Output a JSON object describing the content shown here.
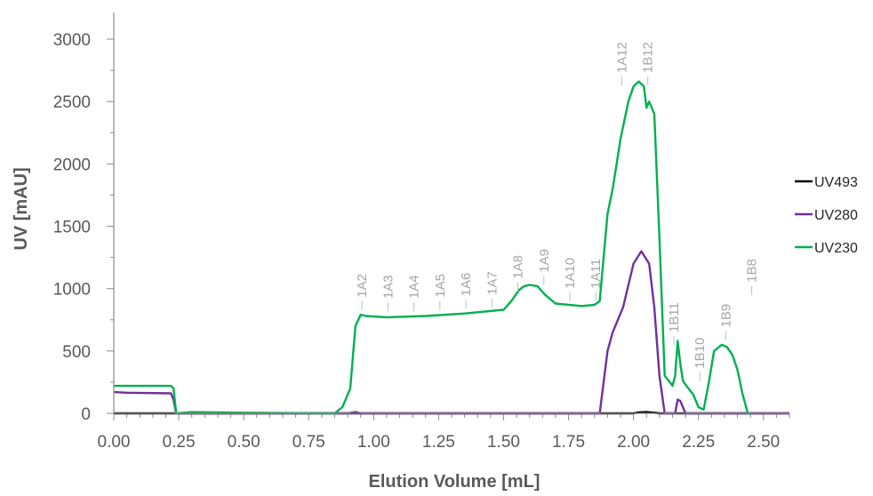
{
  "chart_data": {
    "type": "line",
    "xlabel": "Elution Volume [mL]",
    "ylabel": "UV [mAU]",
    "xlim": [
      0,
      2.6
    ],
    "ylim": [
      0,
      3000
    ],
    "x_ticks": [
      "0.00",
      "0.25",
      "0.50",
      "0.75",
      "1.00",
      "1.25",
      "1.50",
      "1.75",
      "2.00",
      "2.25",
      "2.50"
    ],
    "y_ticks": [
      "0",
      "500",
      "1000",
      "1500",
      "2000",
      "2500",
      "3000"
    ],
    "grid": false,
    "legend_position": "right",
    "series": [
      {
        "name": "UV493",
        "color": "#000000",
        "x": [
          0,
          2.0,
          2.02,
          2.05,
          2.08,
          2.1,
          2.6
        ],
        "y": [
          0,
          0,
          8,
          10,
          5,
          0,
          0
        ]
      },
      {
        "name": "UV280",
        "color": "#7030a0",
        "x": [
          0,
          0.05,
          0.22,
          0.23,
          0.24,
          0.9,
          0.93,
          0.95,
          1.87,
          1.9,
          1.92,
          1.96,
          2.0,
          2.03,
          2.06,
          2.08,
          2.1,
          2.12,
          2.16,
          2.17,
          2.18,
          2.2,
          2.6
        ],
        "y": [
          170,
          165,
          160,
          110,
          0,
          0,
          10,
          0,
          0,
          500,
          650,
          850,
          1200,
          1300,
          1200,
          850,
          300,
          0,
          0,
          110,
          100,
          0,
          0
        ]
      },
      {
        "name": "UV230",
        "color": "#00b050",
        "x": [
          0,
          0.1,
          0.22,
          0.23,
          0.24,
          0.3,
          0.5,
          0.85,
          0.88,
          0.91,
          0.93,
          0.95,
          0.97,
          1.05,
          1.2,
          1.35,
          1.5,
          1.53,
          1.56,
          1.58,
          1.6,
          1.63,
          1.66,
          1.7,
          1.8,
          1.85,
          1.87,
          1.9,
          1.92,
          1.95,
          1.98,
          2.0,
          2.02,
          2.04,
          2.05,
          2.06,
          2.08,
          2.1,
          2.12,
          2.14,
          2.15,
          2.16,
          2.17,
          2.18,
          2.19,
          2.2,
          2.23,
          2.25,
          2.27,
          2.29,
          2.31,
          2.34,
          2.36,
          2.38,
          2.4,
          2.42,
          2.44,
          2.45
        ],
        "y": [
          220,
          220,
          220,
          200,
          0,
          10,
          5,
          0,
          50,
          200,
          700,
          790,
          780,
          770,
          780,
          800,
          830,
          900,
          990,
          1020,
          1030,
          1020,
          950,
          880,
          860,
          870,
          900,
          1600,
          1800,
          2200,
          2500,
          2620,
          2660,
          2620,
          2450,
          2500,
          2400,
          1400,
          300,
          250,
          220,
          300,
          580,
          400,
          260,
          230,
          150,
          50,
          30,
          250,
          500,
          550,
          530,
          470,
          350,
          150,
          0,
          0
        ]
      }
    ],
    "annotations": [
      {
        "label": "1A2",
        "x": 0.955,
        "y": 800
      },
      {
        "label": "1A3",
        "x": 1.055,
        "y": 790
      },
      {
        "label": "1A4",
        "x": 1.155,
        "y": 790
      },
      {
        "label": "1A5",
        "x": 1.255,
        "y": 800
      },
      {
        "label": "1A6",
        "x": 1.355,
        "y": 810
      },
      {
        "label": "1A7",
        "x": 1.455,
        "y": 820
      },
      {
        "label": "1A8",
        "x": 1.555,
        "y": 950
      },
      {
        "label": "1A9",
        "x": 1.655,
        "y": 1000
      },
      {
        "label": "1A10",
        "x": 1.755,
        "y": 870
      },
      {
        "label": "1A11",
        "x": 1.855,
        "y": 870
      },
      {
        "label": "1A12",
        "x": 1.955,
        "y": 2600
      },
      {
        "label": "1B12",
        "x": 2.055,
        "y": 2600
      },
      {
        "label": "1B11",
        "x": 2.155,
        "y": 520
      },
      {
        "label": "1B10",
        "x": 2.255,
        "y": 230
      },
      {
        "label": "1B9",
        "x": 2.355,
        "y": 560
      },
      {
        "label": "1B8",
        "x": 2.455,
        "y": 920
      }
    ]
  }
}
